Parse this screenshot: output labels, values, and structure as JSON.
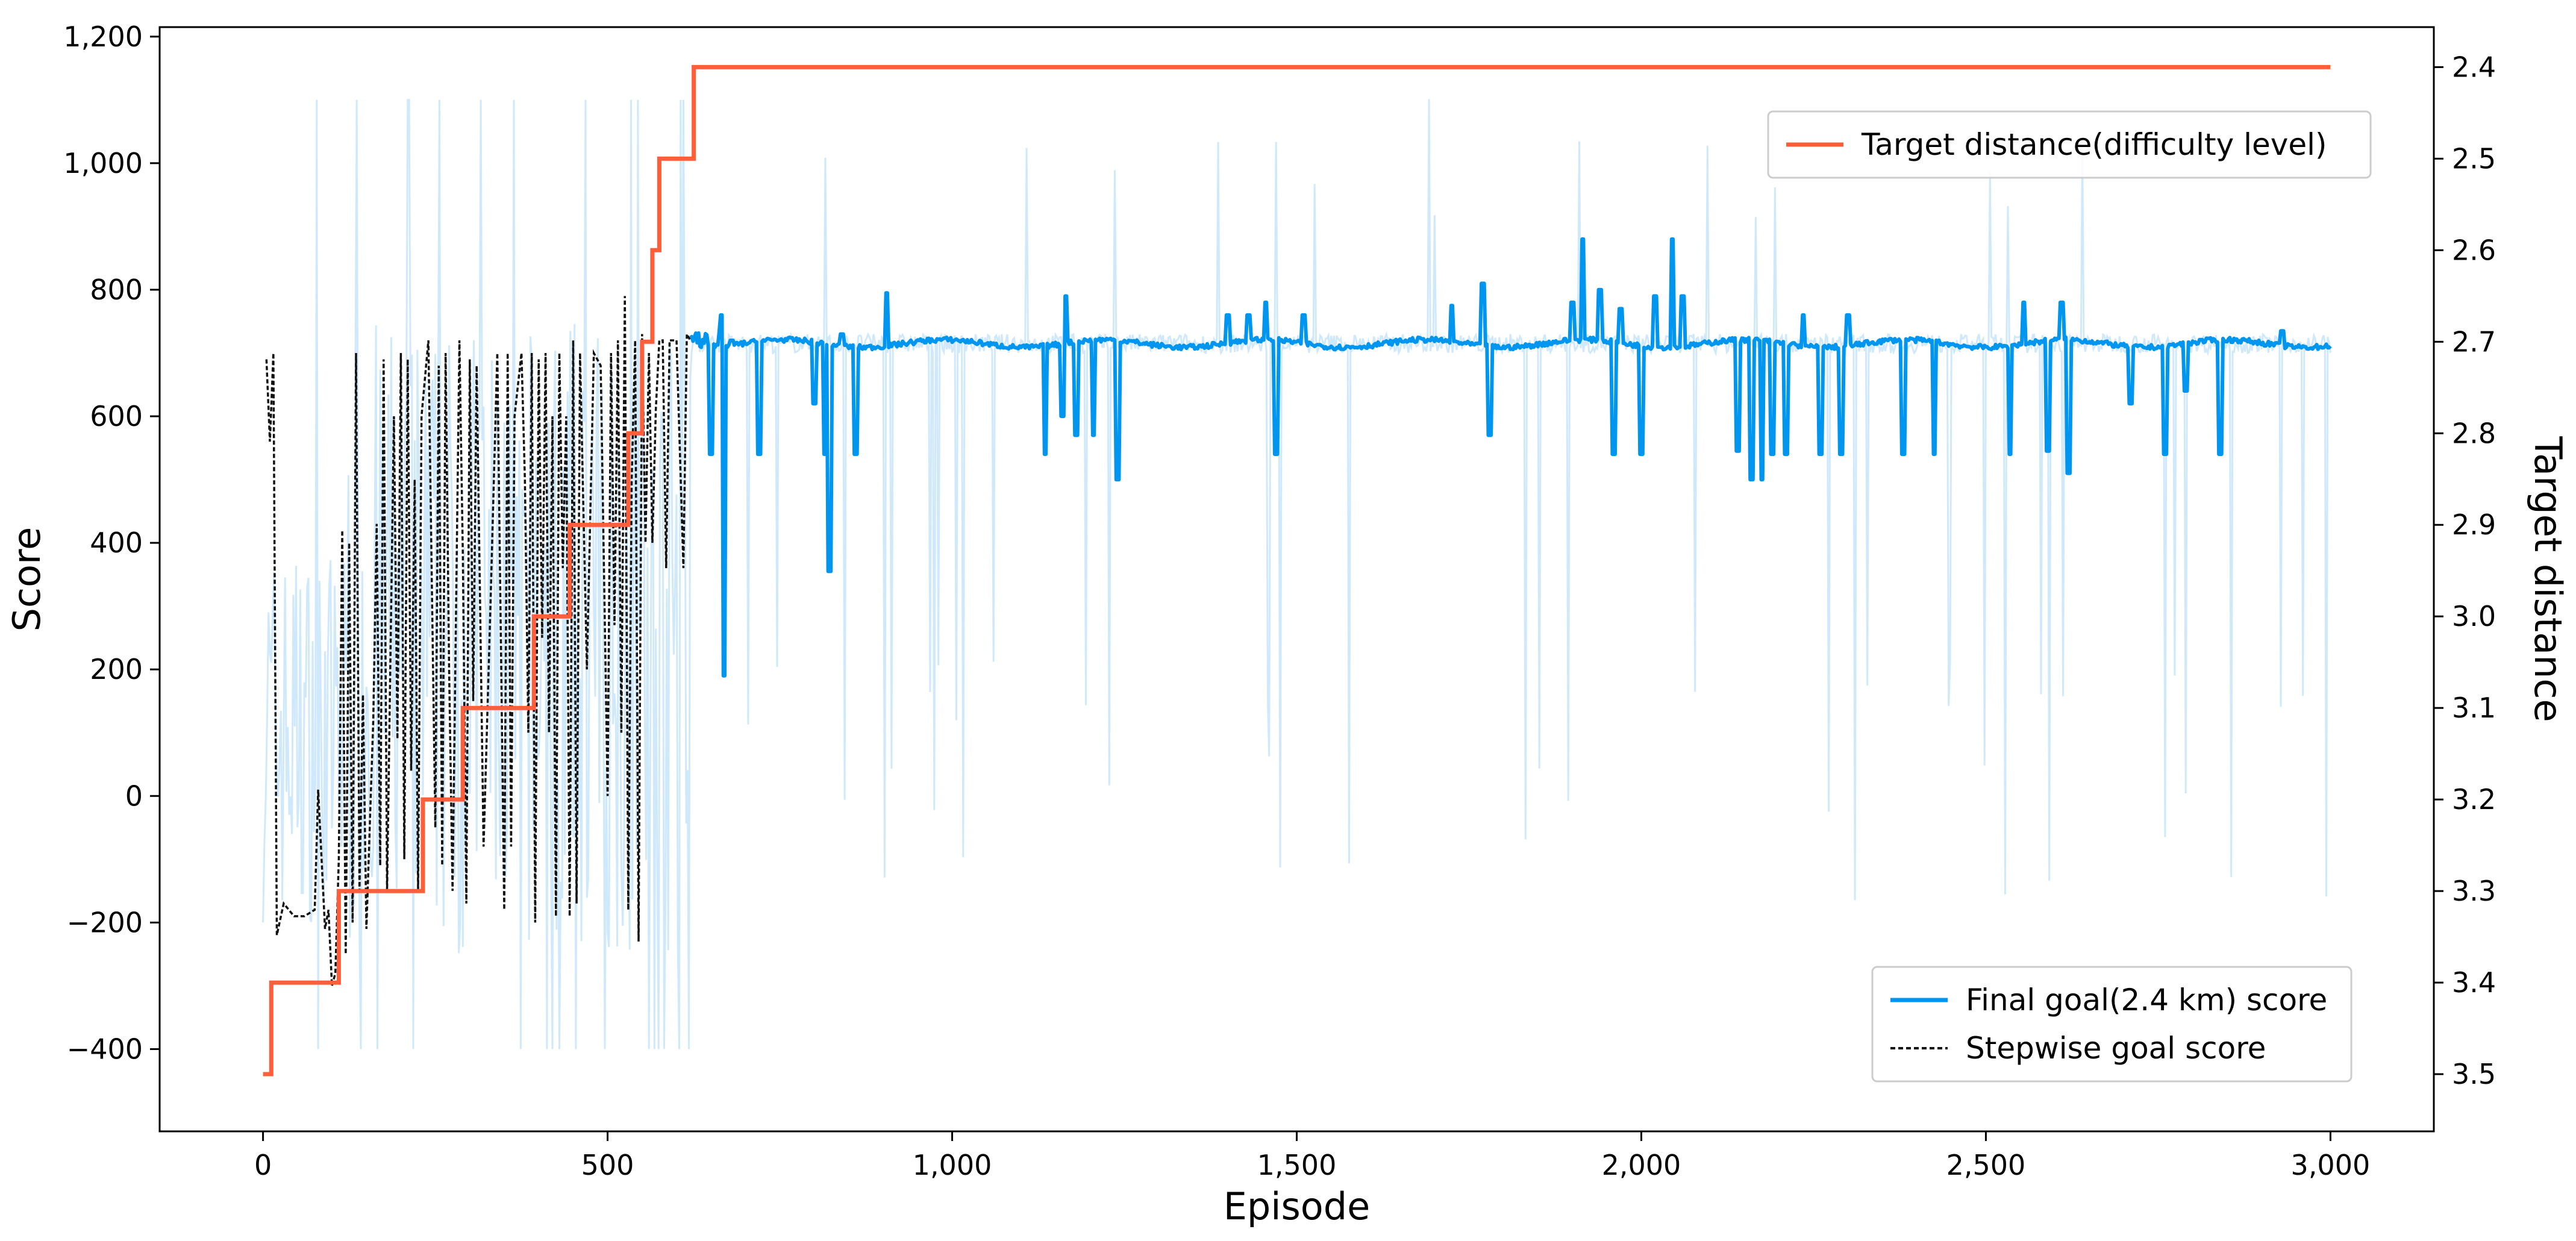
{
  "chart_data": {
    "type": "line",
    "title": "",
    "xlabel": "Episode",
    "ylabel": "Score",
    "y2label": "Target distance",
    "xlim": [
      -150,
      3150
    ],
    "ylim": [
      -530,
      1215
    ],
    "y2lim": [
      3.5625,
      2.3563
    ],
    "x_ticks": [
      0,
      500,
      1000,
      1500,
      2000,
      2500,
      3000
    ],
    "x_tick_labels": [
      "0",
      "500",
      "1,000",
      "1,500",
      "2,000",
      "2,500",
      "3,000"
    ],
    "y_ticks": [
      -400,
      -200,
      0,
      200,
      400,
      600,
      800,
      1000,
      1200
    ],
    "y_tick_labels": [
      "−400",
      "−200",
      "0",
      "200",
      "400",
      "600",
      "800",
      "1,000",
      "1,200"
    ],
    "y2_ticks": [
      2.4,
      2.5,
      2.6,
      2.7,
      2.8,
      2.9,
      3.0,
      3.1,
      3.2,
      3.3,
      3.4,
      3.5
    ],
    "y2_tick_labels": [
      "2.4",
      "2.5",
      "2.6",
      "2.7",
      "2.8",
      "2.9",
      "3.0",
      "3.1",
      "3.2",
      "3.3",
      "3.4",
      "3.5"
    ],
    "grid": false,
    "legends": [
      {
        "placement": "top-right",
        "entries": [
          "Target distance(difficulty level)"
        ]
      },
      {
        "placement": "lower-right",
        "entries": [
          "Final goal(2.4 km) score",
          "Stepwise goal score"
        ]
      }
    ],
    "series": [
      {
        "name": "Target distance(difficulty level)",
        "axis": "right",
        "style": "step",
        "color": "#ff5e3a",
        "x": [
          0,
          12,
          12,
          110,
          110,
          232,
          232,
          290,
          290,
          393,
          393,
          445,
          445,
          530,
          530,
          550,
          550,
          565,
          565,
          575,
          575,
          625,
          625,
          3000
        ],
        "y": [
          3.5,
          3.5,
          3.4,
          3.4,
          3.3,
          3.3,
          3.2,
          3.2,
          3.1,
          3.1,
          3.0,
          3.0,
          2.9,
          2.9,
          2.8,
          2.8,
          2.7,
          2.7,
          2.6,
          2.6,
          2.5,
          2.5,
          2.4,
          2.4
        ]
      },
      {
        "name": "Final goal(2.4 km) score",
        "axis": "left",
        "color": "#0096f0",
        "raw_color": "#cfe9fb",
        "baseline": 715,
        "x_start": 620,
        "x_end": 3000,
        "spikes": [
          [
            650,
            540
          ],
          [
            665,
            760
          ],
          [
            668,
            190
          ],
          [
            680,
            720
          ],
          [
            720,
            540
          ],
          [
            800,
            620
          ],
          [
            815,
            540
          ],
          [
            822,
            355
          ],
          [
            840,
            730
          ],
          [
            860,
            540
          ],
          [
            905,
            795
          ],
          [
            1135,
            540
          ],
          [
            1160,
            600
          ],
          [
            1165,
            790
          ],
          [
            1180,
            570
          ],
          [
            1205,
            570
          ],
          [
            1240,
            500
          ],
          [
            1400,
            760
          ],
          [
            1430,
            760
          ],
          [
            1455,
            780
          ],
          [
            1470,
            540
          ],
          [
            1510,
            760
          ],
          [
            1725,
            775
          ],
          [
            1770,
            810
          ],
          [
            1780,
            570
          ],
          [
            1900,
            780
          ],
          [
            1915,
            880
          ],
          [
            1940,
            800
          ],
          [
            1960,
            540
          ],
          [
            1970,
            770
          ],
          [
            2000,
            540
          ],
          [
            2020,
            790
          ],
          [
            2045,
            880
          ],
          [
            2060,
            790
          ],
          [
            2140,
            545
          ],
          [
            2160,
            500
          ],
          [
            2175,
            500
          ],
          [
            2190,
            540
          ],
          [
            2210,
            540
          ],
          [
            2235,
            760
          ],
          [
            2260,
            540
          ],
          [
            2290,
            540
          ],
          [
            2300,
            760
          ],
          [
            2380,
            540
          ],
          [
            2425,
            540
          ],
          [
            2535,
            540
          ],
          [
            2555,
            780
          ],
          [
            2590,
            545
          ],
          [
            2610,
            780
          ],
          [
            2620,
            510
          ],
          [
            2710,
            620
          ],
          [
            2760,
            540
          ],
          [
            2790,
            640
          ],
          [
            2840,
            540
          ],
          [
            2930,
            735
          ]
        ]
      },
      {
        "name": "Stepwise goal score",
        "axis": "left",
        "color": "#111111",
        "style": "dashed",
        "x": [
          5,
          10,
          15,
          20,
          30,
          45,
          60,
          75,
          80,
          90,
          95,
          100,
          105,
          110,
          115,
          120,
          125,
          130,
          135,
          140,
          145,
          150,
          160,
          165,
          170,
          175,
          180,
          190,
          195,
          200,
          205,
          210,
          215,
          220,
          225,
          230,
          240,
          250,
          255,
          260,
          265,
          270,
          275,
          285,
          290,
          295,
          300,
          305,
          310,
          320,
          330,
          340,
          350,
          355,
          360,
          365,
          375,
          380,
          385,
          390,
          395,
          400,
          405,
          410,
          415,
          420,
          425,
          430,
          435,
          440,
          445,
          450,
          455,
          460,
          470,
          480,
          490,
          500,
          505,
          510,
          515,
          520,
          525,
          530,
          535,
          540,
          545,
          550,
          555,
          560,
          565,
          570,
          575,
          580,
          585,
          590,
          600,
          610,
          615,
          620
        ],
        "y": [
          690,
          560,
          700,
          -220,
          -170,
          -190,
          -190,
          -180,
          10,
          -210,
          -180,
          -300,
          -280,
          -100,
          420,
          -250,
          400,
          -200,
          700,
          -150,
          160,
          -210,
          120,
          430,
          -110,
          690,
          -150,
          600,
          90,
          700,
          -100,
          690,
          40,
          500,
          -150,
          600,
          720,
          -50,
          680,
          -110,
          700,
          200,
          -150,
          720,
          380,
          -170,
          690,
          150,
          680,
          -80,
          300,
          700,
          -180,
          700,
          -80,
          600,
          700,
          500,
          100,
          700,
          -200,
          690,
          250,
          700,
          100,
          600,
          -190,
          700,
          360,
          600,
          -190,
          720,
          -170,
          700,
          200,
          700,
          680,
          0,
          700,
          270,
          720,
          100,
          790,
          -180,
          500,
          720,
          -230,
          730,
          400,
          700,
          400,
          610,
          720,
          720,
          360,
          720,
          720,
          360,
          730,
          720
        ]
      }
    ]
  }
}
